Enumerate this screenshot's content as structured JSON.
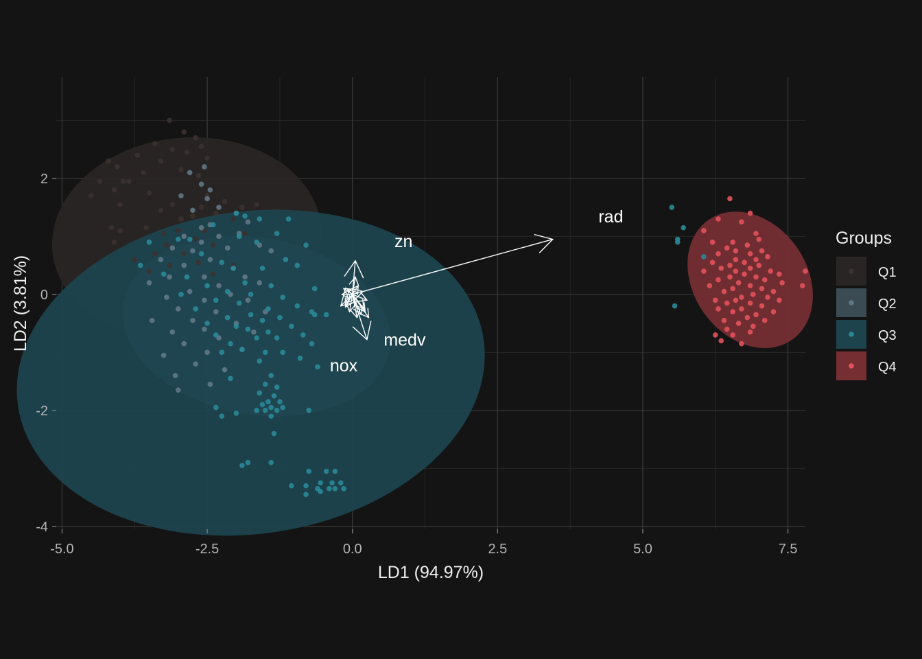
{
  "chart_data": {
    "type": "scatter",
    "title": "",
    "xlabel": "LD1 (94.97%)",
    "ylabel": "LD2 (3.81%)",
    "xlim": [
      -5.1,
      7.8
    ],
    "ylim": [
      -4.05,
      3.75
    ],
    "x_ticks": [
      -5.0,
      -2.5,
      0.0,
      2.5,
      5.0,
      7.5
    ],
    "x_tick_labels": [
      "-5.0",
      "-2.5",
      "0.0",
      "2.5",
      "5.0",
      "7.5"
    ],
    "y_ticks": [
      -4,
      -2,
      0,
      2
    ],
    "y_tick_labels": [
      "-4",
      "-2",
      "0",
      "2"
    ],
    "grid": true,
    "legend": {
      "title": "Groups",
      "position": "right"
    },
    "colors": {
      "background": "#141414",
      "grid_major": "#3a3a3a",
      "grid_minor": "#262626",
      "Q1": "#3b3230",
      "Q2": "#607786",
      "Q3": "#2a8898",
      "Q4": "#e3525c"
    },
    "ellipses": [
      {
        "group": "Q1",
        "cx": -2.85,
        "cy": 0.95,
        "rx": 1.75,
        "ry": 2.33,
        "angle_deg": 95,
        "fill": "#2a2625"
      },
      {
        "group": "Q2",
        "cx": -1.65,
        "cy": -0.55,
        "rx": 1.52,
        "ry": 2.33,
        "angle_deg": 80,
        "fill": "#3d4e57"
      },
      {
        "group": "Q3",
        "cx": -1.75,
        "cy": -1.35,
        "rx": 4.05,
        "ry": 2.78,
        "angle_deg": 8,
        "fill": "#1d4650"
      },
      {
        "group": "Q4",
        "cx": 6.85,
        "cy": 0.25,
        "rx": 0.98,
        "ry": 1.26,
        "angle_deg": 35,
        "fill": "#7a3034"
      }
    ],
    "series": [
      {
        "name": "Q1",
        "color": "#3b3230",
        "points": [
          [
            -3.15,
            3.0
          ],
          [
            -2.9,
            2.8
          ],
          [
            -2.7,
            2.7
          ],
          [
            -3.4,
            2.6
          ],
          [
            -3.1,
            2.5
          ],
          [
            -2.6,
            2.55
          ],
          [
            -2.85,
            2.45
          ],
          [
            -3.7,
            2.4
          ],
          [
            -3.3,
            2.3
          ],
          [
            -2.5,
            2.35
          ],
          [
            -4.2,
            2.3
          ],
          [
            -4.05,
            2.2
          ],
          [
            -2.95,
            2.15
          ],
          [
            -3.6,
            2.1
          ],
          [
            -2.65,
            2.05
          ],
          [
            -4.35,
            1.95
          ],
          [
            -3.95,
            1.95
          ],
          [
            -3.85,
            1.95
          ],
          [
            -4.1,
            1.8
          ],
          [
            -3.5,
            1.75
          ],
          [
            -2.5,
            1.7
          ],
          [
            -4.5,
            1.7
          ],
          [
            -2.2,
            1.6
          ],
          [
            -3.1,
            1.55
          ],
          [
            -4.0,
            1.55
          ],
          [
            -2.6,
            1.5
          ],
          [
            -1.9,
            1.5
          ],
          [
            -3.3,
            1.45
          ],
          [
            -2.35,
            1.4
          ],
          [
            -2.75,
            1.35
          ],
          [
            -1.65,
            1.55
          ],
          [
            -2.95,
            1.3
          ],
          [
            -2.05,
            1.3
          ],
          [
            -4.15,
            1.15
          ],
          [
            -3.55,
            1.15
          ],
          [
            -3.0,
            1.1
          ],
          [
            -4.0,
            1.1
          ],
          [
            -2.55,
            1.1
          ],
          [
            -3.25,
            1.05
          ],
          [
            -2.7,
            0.95
          ],
          [
            -1.85,
            1.05
          ],
          [
            -4.1,
            0.9
          ],
          [
            -3.2,
            0.85
          ],
          [
            -2.4,
            0.85
          ],
          [
            -3.4,
            0.7
          ],
          [
            -2.9,
            0.7
          ],
          [
            -3.75,
            0.6
          ],
          [
            -2.65,
            0.55
          ],
          [
            -3.15,
            0.5
          ],
          [
            -2.05,
            0.5
          ],
          [
            -3.5,
            0.4
          ],
          [
            -2.4,
            0.35
          ]
        ]
      },
      {
        "name": "Q2",
        "color": "#607786",
        "points": [
          [
            -2.8,
            2.1
          ],
          [
            -2.55,
            2.2
          ],
          [
            -2.6,
            1.9
          ],
          [
            -2.45,
            1.8
          ],
          [
            -2.95,
            1.7
          ],
          [
            -2.5,
            1.65
          ],
          [
            -2.3,
            1.5
          ],
          [
            -2.75,
            1.45
          ],
          [
            -2.0,
            1.4
          ],
          [
            -2.45,
            1.2
          ],
          [
            -2.6,
            1.15
          ],
          [
            -1.8,
            1.25
          ],
          [
            -2.9,
            1.0
          ],
          [
            -2.3,
            1.0
          ],
          [
            -1.95,
            1.05
          ],
          [
            -2.6,
            0.9
          ],
          [
            -3.1,
            0.8
          ],
          [
            -2.15,
            0.8
          ],
          [
            -2.75,
            0.75
          ],
          [
            -1.6,
            0.85
          ],
          [
            -3.3,
            0.6
          ],
          [
            -2.45,
            0.6
          ],
          [
            -1.4,
            0.75
          ],
          [
            -2.9,
            0.5
          ],
          [
            -2.05,
            0.45
          ],
          [
            -3.15,
            0.3
          ],
          [
            -2.55,
            0.3
          ],
          [
            -1.85,
            0.3
          ],
          [
            -3.5,
            0.2
          ],
          [
            -2.3,
            0.15
          ],
          [
            -1.6,
            0.2
          ],
          [
            -2.8,
            0.05
          ],
          [
            -2.1,
            0.0
          ],
          [
            -3.2,
            -0.05
          ],
          [
            -2.55,
            -0.1
          ],
          [
            -1.8,
            -0.1
          ],
          [
            -3.0,
            -0.25
          ],
          [
            -2.35,
            -0.3
          ],
          [
            -1.5,
            -0.3
          ],
          [
            -2.75,
            -0.45
          ],
          [
            -3.45,
            -0.45
          ],
          [
            -2.0,
            -0.5
          ],
          [
            -2.55,
            -0.6
          ],
          [
            -3.1,
            -0.65
          ],
          [
            -1.7,
            -0.65
          ],
          [
            -2.3,
            -0.75
          ],
          [
            -2.9,
            -0.85
          ],
          [
            -3.25,
            -1.05
          ],
          [
            -2.5,
            -1.0
          ],
          [
            -1.9,
            -0.95
          ],
          [
            -2.7,
            -1.2
          ],
          [
            -3.05,
            -1.4
          ],
          [
            -2.2,
            -1.3
          ],
          [
            -2.45,
            -1.55
          ],
          [
            -3.0,
            -1.65
          ]
        ]
      },
      {
        "name": "Q3",
        "color": "#2a8898",
        "points": [
          [
            -2.0,
            1.4
          ],
          [
            -1.85,
            1.35
          ],
          [
            -1.6,
            1.3
          ],
          [
            -2.4,
            1.2
          ],
          [
            -1.1,
            1.3
          ],
          [
            -1.3,
            1.05
          ],
          [
            -1.95,
            1.0
          ],
          [
            -2.8,
            0.95
          ],
          [
            -3.0,
            0.95
          ],
          [
            -1.65,
            0.9
          ],
          [
            -0.8,
            0.85
          ],
          [
            -3.5,
            0.9
          ],
          [
            -2.6,
            0.7
          ],
          [
            -1.15,
            0.6
          ],
          [
            -2.25,
            0.55
          ],
          [
            -0.95,
            0.5
          ],
          [
            -3.65,
            0.5
          ],
          [
            -2.05,
            0.45
          ],
          [
            -1.55,
            0.45
          ],
          [
            -3.25,
            0.35
          ],
          [
            -2.85,
            0.3
          ],
          [
            -1.85,
            0.2
          ],
          [
            -2.5,
            0.15
          ],
          [
            -1.4,
            0.15
          ],
          [
            -0.65,
            0.1
          ],
          [
            -2.15,
            0.05
          ],
          [
            -1.75,
            0.0
          ],
          [
            -2.95,
            0.0
          ],
          [
            -1.2,
            -0.05
          ],
          [
            -2.35,
            -0.1
          ],
          [
            -1.95,
            -0.15
          ],
          [
            -0.95,
            -0.2
          ],
          [
            -1.45,
            -0.25
          ],
          [
            -2.7,
            -0.25
          ],
          [
            -0.7,
            -0.3
          ],
          [
            -1.75,
            -0.35
          ],
          [
            -0.65,
            -0.35
          ],
          [
            -0.45,
            -0.35
          ],
          [
            -2.15,
            -0.4
          ],
          [
            -1.25,
            -0.4
          ],
          [
            -1.55,
            -0.45
          ],
          [
            -2.5,
            -0.5
          ],
          [
            -1.05,
            -0.55
          ],
          [
            -2.0,
            -0.55
          ],
          [
            -1.8,
            -0.6
          ],
          [
            -2.35,
            -0.7
          ],
          [
            -0.85,
            -0.7
          ],
          [
            -1.45,
            -0.65
          ],
          [
            -1.65,
            -0.75
          ],
          [
            -1.3,
            -0.75
          ],
          [
            -2.1,
            -0.85
          ],
          [
            -0.7,
            -0.85
          ],
          [
            -1.9,
            -0.95
          ],
          [
            -1.5,
            -1.0
          ],
          [
            -2.25,
            -1.0
          ],
          [
            -1.2,
            -1.0
          ],
          [
            -0.9,
            -1.1
          ],
          [
            -1.6,
            -1.15
          ],
          [
            -0.6,
            -1.25
          ],
          [
            -1.4,
            -1.4
          ],
          [
            -2.1,
            -1.45
          ],
          [
            -1.5,
            -1.55
          ],
          [
            -1.3,
            -1.6
          ],
          [
            -1.6,
            -1.7
          ],
          [
            -1.35,
            -1.75
          ],
          [
            -1.45,
            -1.85
          ],
          [
            -1.25,
            -1.85
          ],
          [
            -1.55,
            -1.9
          ],
          [
            -1.4,
            -1.95
          ],
          [
            -1.3,
            -2.0
          ],
          [
            -1.5,
            -2.0
          ],
          [
            -1.4,
            -2.1
          ],
          [
            -1.65,
            -2.0
          ],
          [
            -1.2,
            -1.95
          ],
          [
            -2.35,
            -1.95
          ],
          [
            -2.0,
            -2.05
          ],
          [
            -0.75,
            -2.0
          ],
          [
            -2.25,
            -2.1
          ],
          [
            -1.35,
            -2.4
          ],
          [
            -1.9,
            -2.95
          ],
          [
            -1.8,
            -2.9
          ],
          [
            -1.4,
            -2.9
          ],
          [
            -0.75,
            -3.05
          ],
          [
            -0.45,
            -3.05
          ],
          [
            -0.3,
            -3.05
          ],
          [
            -1.05,
            -3.3
          ],
          [
            -0.8,
            -3.3
          ],
          [
            -0.55,
            -3.25
          ],
          [
            -0.35,
            -3.25
          ],
          [
            -0.2,
            -3.25
          ],
          [
            -0.6,
            -3.35
          ],
          [
            -0.3,
            -3.35
          ],
          [
            -0.15,
            -3.35
          ],
          [
            -0.8,
            -3.45
          ],
          [
            -0.55,
            -3.4
          ],
          [
            -0.4,
            -3.35
          ],
          [
            5.5,
            1.5
          ],
          [
            5.7,
            1.15
          ],
          [
            5.6,
            0.95
          ],
          [
            5.6,
            0.9
          ],
          [
            6.05,
            0.65
          ],
          [
            5.55,
            -0.2
          ]
        ]
      },
      {
        "name": "Q4",
        "color": "#e3525c",
        "points": [
          [
            6.5,
            1.65
          ],
          [
            6.85,
            1.4
          ],
          [
            6.3,
            1.3
          ],
          [
            6.7,
            1.25
          ],
          [
            6.05,
            1.1
          ],
          [
            6.95,
            1.05
          ],
          [
            7.0,
            0.95
          ],
          [
            6.2,
            0.9
          ],
          [
            6.55,
            0.9
          ],
          [
            6.8,
            0.85
          ],
          [
            6.45,
            0.8
          ],
          [
            6.6,
            0.75
          ],
          [
            7.05,
            0.75
          ],
          [
            6.85,
            0.7
          ],
          [
            6.3,
            0.7
          ],
          [
            7.15,
            0.65
          ],
          [
            6.6,
            0.6
          ],
          [
            6.95,
            0.6
          ],
          [
            6.75,
            0.55
          ],
          [
            6.2,
            0.55
          ],
          [
            6.5,
            0.5
          ],
          [
            7.0,
            0.5
          ],
          [
            6.35,
            0.45
          ],
          [
            6.85,
            0.45
          ],
          [
            6.6,
            0.4
          ],
          [
            7.2,
            0.4
          ],
          [
            6.05,
            0.4
          ],
          [
            6.75,
            0.35
          ],
          [
            7.35,
            0.35
          ],
          [
            6.5,
            0.3
          ],
          [
            6.95,
            0.3
          ],
          [
            7.1,
            0.25
          ],
          [
            6.3,
            0.25
          ],
          [
            6.65,
            0.2
          ],
          [
            7.4,
            0.2
          ],
          [
            6.85,
            0.15
          ],
          [
            6.15,
            0.15
          ],
          [
            6.55,
            0.1
          ],
          [
            7.05,
            0.1
          ],
          [
            7.25,
            0.05
          ],
          [
            6.4,
            0.05
          ],
          [
            6.9,
            0.0
          ],
          [
            6.7,
            -0.05
          ],
          [
            7.15,
            -0.05
          ],
          [
            6.25,
            -0.1
          ],
          [
            6.6,
            -0.1
          ],
          [
            7.35,
            -0.1
          ],
          [
            6.85,
            -0.15
          ],
          [
            6.45,
            -0.15
          ],
          [
            7.05,
            -0.2
          ],
          [
            6.7,
            -0.25
          ],
          [
            6.3,
            -0.25
          ],
          [
            7.25,
            -0.3
          ],
          [
            6.55,
            -0.3
          ],
          [
            6.95,
            -0.35
          ],
          [
            6.8,
            -0.4
          ],
          [
            7.1,
            -0.45
          ],
          [
            6.4,
            -0.45
          ],
          [
            6.65,
            -0.5
          ],
          [
            6.9,
            -0.55
          ],
          [
            6.45,
            -0.6
          ],
          [
            6.55,
            -0.7
          ],
          [
            6.25,
            -0.7
          ],
          [
            6.85,
            -0.65
          ],
          [
            6.35,
            -0.8
          ],
          [
            6.7,
            -0.85
          ],
          [
            7.8,
            0.4
          ],
          [
            7.75,
            0.15
          ]
        ]
      }
    ],
    "vectors": [
      {
        "label": "rad",
        "x": 3.45,
        "y": 0.95,
        "label_x": 4.45,
        "label_y": 1.35
      },
      {
        "label": "zn",
        "x": 0.05,
        "y": 0.58,
        "label_x": 0.88,
        "label_y": 0.92
      },
      {
        "label": "medv",
        "x": 0.25,
        "y": -0.78,
        "label_x": 0.9,
        "label_y": -0.78
      },
      {
        "label": "nox",
        "x": -0.2,
        "y": -0.2,
        "label_x": -0.15,
        "label_y": -1.22
      }
    ],
    "minor_vectors": [
      [
        -0.15,
        0.1
      ],
      [
        0.1,
        0.15
      ],
      [
        -0.1,
        -0.15
      ],
      [
        0.2,
        -0.25
      ],
      [
        0.15,
        -0.35
      ],
      [
        -0.05,
        -0.3
      ],
      [
        0.25,
        -0.1
      ],
      [
        -0.18,
        0.0
      ],
      [
        0.08,
        -0.4
      ],
      [
        0.28,
        -0.4
      ],
      [
        -0.12,
        -0.22
      ],
      [
        0.18,
        0.05
      ],
      [
        0.05,
        0.3
      ],
      [
        0.22,
        -0.3
      ],
      [
        -0.08,
        0.08
      ]
    ]
  }
}
